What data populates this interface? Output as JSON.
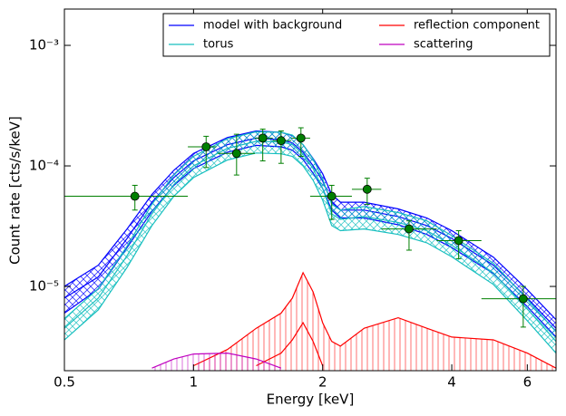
{
  "chart_data": {
    "type": "line",
    "x_label": "Energy [keV]",
    "y_label": "Count rate [cts/s/keV]",
    "xscale": "log",
    "yscale": "log",
    "xlim": [
      0.5,
      7.0
    ],
    "ylim": [
      2e-06,
      0.002
    ],
    "xticks": [
      0.5,
      1,
      2,
      4,
      6
    ],
    "yticks": [
      {
        "value": 1e-05,
        "label": "10⁻⁵"
      },
      {
        "value": 0.0001,
        "label": "10⁻⁴"
      },
      {
        "value": 0.001,
        "label": "10⁻³"
      }
    ],
    "legend": "upper right",
    "x": [
      0.5,
      0.6,
      0.7,
      0.8,
      0.9,
      1.0,
      1.2,
      1.4,
      1.6,
      1.7,
      1.8,
      1.9,
      2.0,
      2.1,
      2.2,
      2.5,
      3.0,
      3.5,
      4.0,
      5.0,
      6.0,
      7.0
    ],
    "series": [
      {
        "name": "model with background",
        "color": "#0000ff",
        "values": [
          8e-06,
          1.2e-05,
          2.5e-05,
          5e-05,
          8e-05,
          0.00011,
          0.00015,
          0.00017,
          0.000165,
          0.000155,
          0.00013,
          0.0001,
          7.5e-05,
          5e-05,
          4.3e-05,
          4.3e-05,
          3.8e-05,
          3.2e-05,
          2.5e-05,
          1.5e-05,
          8e-06,
          4.5e-06
        ],
        "band_low": [
          6e-06,
          9.5e-06,
          2.1e-05,
          4.2e-05,
          6.9e-05,
          9.5e-05,
          0.00013,
          0.000148,
          0.000144,
          0.000135,
          0.000113,
          8.7e-05,
          6.5e-05,
          4.3e-05,
          3.7e-05,
          3.7e-05,
          3.25e-05,
          2.7e-05,
          2.1e-05,
          1.28e-05,
          6.8e-06,
          3.8e-06
        ],
        "band_high": [
          1e-05,
          1.5e-05,
          3e-05,
          5.8e-05,
          9.2e-05,
          0.000127,
          0.000172,
          0.000195,
          0.00019,
          0.000178,
          0.00015,
          0.000115,
          8.6e-05,
          5.8e-05,
          5e-05,
          5e-05,
          4.4e-05,
          3.7e-05,
          2.9e-05,
          1.75e-05,
          9.4e-06,
          5.3e-06
        ]
      },
      {
        "name": "torus",
        "color": "#17bfbf",
        "values": [
          4.5e-06,
          8e-06,
          1.8e-05,
          4e-05,
          7e-05,
          0.0001,
          0.00014,
          0.00016,
          0.000158,
          0.00015,
          0.000125,
          9.5e-05,
          6.5e-05,
          4e-05,
          3.6e-05,
          3.8e-05,
          3.4e-05,
          2.9e-05,
          2.2e-05,
          1.3e-05,
          6.5e-06,
          3.5e-06
        ],
        "band_low": [
          3.6e-06,
          6.4e-06,
          1.44e-05,
          3.2e-05,
          5.6e-05,
          8e-05,
          0.000112,
          0.000128,
          0.000126,
          0.00012,
          0.0001,
          7.6e-05,
          5.2e-05,
          3.2e-05,
          2.9e-05,
          3e-05,
          2.7e-05,
          2.3e-05,
          1.76e-05,
          1.04e-05,
          5.2e-06,
          2.8e-06
        ],
        "band_high": [
          5.4e-06,
          9.6e-06,
          2.16e-05,
          4.8e-05,
          8.4e-05,
          0.00012,
          0.000168,
          0.000192,
          0.00019,
          0.00018,
          0.00015,
          0.000114,
          7.8e-05,
          4.8e-05,
          4.3e-05,
          4.6e-05,
          4.1e-05,
          3.5e-05,
          2.64e-05,
          1.56e-05,
          7.8e-06,
          4.2e-06
        ]
      },
      {
        "name": "reflection component",
        "color": "#ff0000",
        "values": [
          null,
          null,
          null,
          null,
          null,
          2.2e-06,
          3e-06,
          4.5e-06,
          6e-06,
          8e-06,
          1.3e-05,
          9e-06,
          5e-06,
          3.5e-06,
          3.2e-06,
          4.5e-06,
          5.5e-06,
          4.5e-06,
          3.8e-06,
          3.6e-06,
          2.8e-06,
          2.1e-06
        ],
        "band_low": [
          null,
          null,
          null,
          null,
          null,
          null,
          null,
          2.2e-06,
          2.8e-06,
          3.6e-06,
          5e-06,
          3.5e-06,
          2.2e-06,
          null,
          null,
          null,
          null,
          null,
          null,
          null,
          null,
          null
        ]
      },
      {
        "name": "scattering",
        "color": "#bf00bf",
        "values": [
          null,
          null,
          null,
          2.1e-06,
          2.5e-06,
          2.75e-06,
          2.8e-06,
          2.5e-06,
          2.1e-06,
          null,
          null,
          null,
          null,
          null,
          null,
          null,
          null,
          null,
          null,
          null,
          null,
          null
        ]
      }
    ],
    "data_points": {
      "color": "#007f00",
      "x": [
        0.73,
        1.07,
        1.26,
        1.45,
        1.6,
        1.78,
        2.1,
        2.54,
        3.18,
        4.15,
        5.87
      ],
      "y": [
        5.6e-05,
        0.000144,
        0.000127,
        0.00017,
        0.000162,
        0.00017,
        5.6e-05,
        6.4e-05,
        3e-05,
        2.4e-05,
        7.9e-06
      ],
      "x_low": [
        0.5,
        0.97,
        1.14,
        1.39,
        1.53,
        1.69,
        1.87,
        2.34,
        2.74,
        3.69,
        4.69
      ],
      "x_high": [
        0.97,
        1.13,
        1.39,
        1.53,
        1.69,
        1.87,
        2.34,
        2.74,
        3.69,
        4.69,
        7.0
      ],
      "y_low": [
        4.3e-05,
        9.7e-05,
        8.4e-05,
        0.00011,
        0.000105,
        0.00012,
        3.6e-05,
        4.8e-05,
        2e-05,
        1.7e-05,
        4.6e-06
      ],
      "y_high": [
        6.9e-05,
        0.000176,
        0.000183,
        0.000202,
        0.000195,
        0.000207,
        6.9e-05,
        7.9e-05,
        3.5e-05,
        2.9e-05,
        1e-05
      ]
    }
  }
}
